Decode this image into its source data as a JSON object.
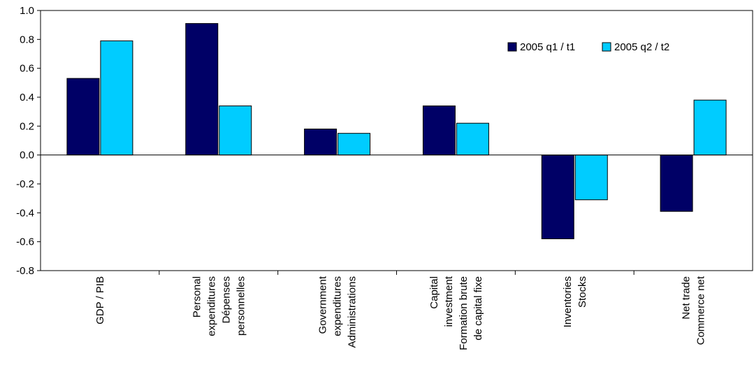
{
  "chart_data": {
    "type": "bar",
    "categories": [
      [
        "GDP / PIB"
      ],
      [
        "Personal",
        "expenditures",
        "Dépenses",
        "personnelles"
      ],
      [
        "Government",
        "expenditures",
        "Administrations"
      ],
      [
        "Capital",
        "investment",
        "Formation brute",
        "de capital fixe"
      ],
      [
        "Inventories",
        "Stocks"
      ],
      [
        "Net trade",
        "Commerce net"
      ]
    ],
    "series": [
      {
        "name": "2005 q1 / t1",
        "color": "#000066",
        "values": [
          0.53,
          0.91,
          0.18,
          0.34,
          -0.58,
          -0.39
        ]
      },
      {
        "name": "2005 q2 / t2",
        "color": "#00CCFF",
        "values": [
          0.79,
          0.34,
          0.15,
          0.22,
          -0.31,
          0.38
        ]
      }
    ],
    "ylim": [
      -0.8,
      1.0
    ],
    "yticks": [
      "1.0",
      "0.8",
      "0.6",
      "0.4",
      "0.2",
      "0.0",
      "-0.2",
      "-0.4",
      "-0.6",
      "-0.8"
    ],
    "ytick_values": [
      1.0,
      0.8,
      0.6,
      0.4,
      0.2,
      0.0,
      -0.2,
      -0.4,
      -0.6,
      -0.8
    ],
    "grid": false,
    "legend_position": "top-right",
    "title": "",
    "xlabel": "",
    "ylabel": ""
  }
}
